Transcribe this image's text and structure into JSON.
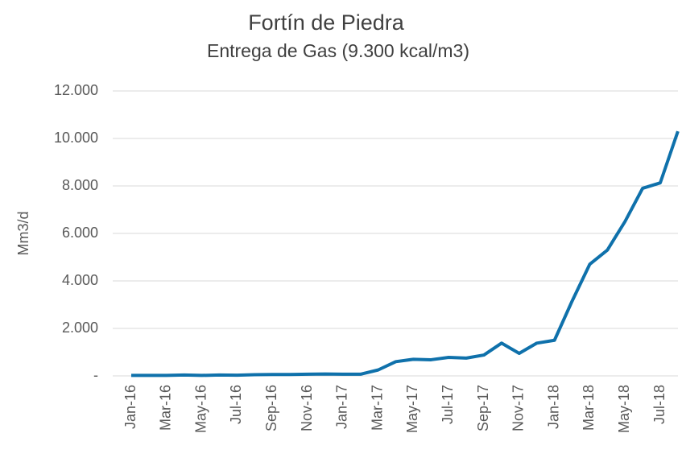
{
  "chart_data": {
    "type": "line",
    "title": "Fortín de Piedra",
    "subtitle": "Entrega de Gas (9.300 kcal/m3)",
    "y_label": "Mm3/d",
    "categories": [
      "Jan-16",
      null,
      "Mar-16",
      null,
      "May-16",
      null,
      "Jul-16",
      null,
      "Sep-16",
      null,
      "Nov-16",
      null,
      "Jan-17",
      null,
      "Mar-17",
      null,
      "May-17",
      null,
      "Jul-17",
      null,
      "Sep-17",
      null,
      "Nov-17",
      null,
      "Jan-18",
      null,
      "Mar-18",
      null,
      "May-18",
      null,
      "Jul-18",
      null
    ],
    "series": [
      {
        "name": "Entrega de Gas",
        "color": "#0f71ab",
        "values": [
          20,
          20,
          20,
          40,
          20,
          40,
          30,
          50,
          60,
          60,
          70,
          80,
          70,
          70,
          250,
          600,
          700,
          680,
          780,
          750,
          880,
          1380,
          950,
          1380,
          1500,
          3150,
          4700,
          5300,
          6500,
          7900,
          8130,
          10300
        ]
      }
    ],
    "ylim": [
      0,
      12000
    ],
    "yticks": [
      {
        "value": 0,
        "label": "-"
      },
      {
        "value": 2000,
        "label": "2.000"
      },
      {
        "value": 4000,
        "label": "4.000"
      },
      {
        "value": 6000,
        "label": "6.000"
      },
      {
        "value": 8000,
        "label": "8.000"
      },
      {
        "value": 10000,
        "label": "10.000"
      },
      {
        "value": 12000,
        "label": "12.000"
      }
    ],
    "grid": true
  }
}
